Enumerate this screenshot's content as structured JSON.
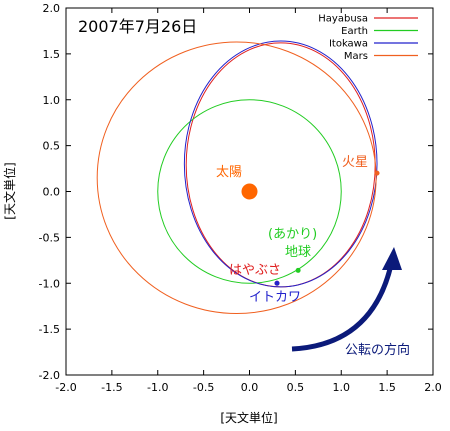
{
  "chart_data": {
    "type": "scatter",
    "title": "2007年7月26日",
    "xlabel": "[天文単位]",
    "ylabel": "[天文単位]",
    "xlim": [
      -2.0,
      2.0
    ],
    "ylim": [
      -2.0,
      2.0
    ],
    "xticks": [
      "-2.0",
      "-1.5",
      "-1.0",
      "-0.5",
      "0.0",
      "0.5",
      "1.0",
      "1.5",
      "2.0"
    ],
    "yticks": [
      "-2.0",
      "-1.5",
      "-1.0",
      "-0.5",
      "0.0",
      "0.5",
      "1.0",
      "1.5",
      "2.0"
    ],
    "grid": false,
    "legend_position": "top-right",
    "series": [
      {
        "name": "Hayabusa",
        "color": "#e02020",
        "orbit": {
          "cx": 0.34,
          "cy": 0.29,
          "rx": 1.03,
          "ry": 1.33
        }
      },
      {
        "name": "Earth",
        "color": "#22cc22",
        "orbit": {
          "cx": 0.0,
          "cy": 0.0,
          "rx": 1.0,
          "ry": 1.0
        }
      },
      {
        "name": "Itokawa",
        "color": "#2222cc",
        "orbit": {
          "cx": 0.34,
          "cy": 0.3,
          "rx": 1.05,
          "ry": 1.34
        }
      },
      {
        "name": "Mars",
        "color": "#f06020",
        "orbit": {
          "cx": -0.14,
          "cy": 0.15,
          "rx": 1.52,
          "ry": 1.48
        }
      }
    ],
    "bodies": [
      {
        "label": "太陽",
        "x": 0.0,
        "y": 0.0,
        "color": "#ff6600"
      },
      {
        "label": "火星",
        "x": 1.39,
        "y": 0.2,
        "color": "#f06020"
      },
      {
        "label": "(あかり)",
        "x": 0.53,
        "y": -0.86,
        "color": "#22cc22"
      },
      {
        "label": "地球",
        "x": 0.53,
        "y": -0.86,
        "color": "#22cc22"
      },
      {
        "label": "はやぶさ",
        "x": 0.3,
        "y": -1.0,
        "color": "#e02020"
      },
      {
        "label": "イトカワ",
        "x": 0.3,
        "y": -1.0,
        "color": "#2222cc"
      }
    ],
    "annotation": {
      "label": "公転の方向",
      "color": "#0b1a7a"
    }
  }
}
